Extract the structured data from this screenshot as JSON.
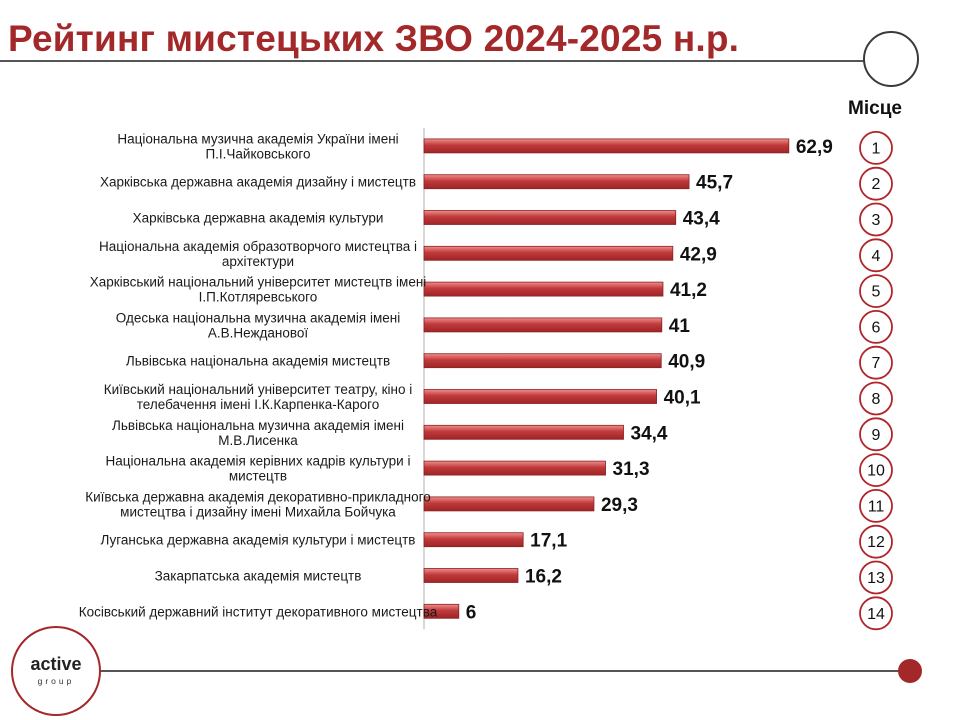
{
  "header": {
    "title": "Рейтинг мистецьких ЗВО 2024-2025 н.р.",
    "place_label": "Місце"
  },
  "logo": {
    "main": "active",
    "sub": "group"
  },
  "colors": {
    "accent": "#a3282a",
    "bar_fill": "#c0393b",
    "bar_highlight": "#ef8f8c"
  },
  "chart_data": {
    "type": "bar",
    "orientation": "horizontal",
    "title": "Рейтинг мистецьких ЗВО 2024-2025 н.р.",
    "xlim": [
      0,
      70
    ],
    "grid": false,
    "legend": "none",
    "categories": [
      [
        "Національна музична академія України імені",
        "П.І.Чайковського"
      ],
      [
        "Харківська державна академія дизайну і мистецтв"
      ],
      [
        "Харківська державна академія культури"
      ],
      [
        "Національна академія образотворчого мистецтва і",
        "архітектури"
      ],
      [
        "Харківський національний університет мистецтв імені",
        "І.П.Котляревського"
      ],
      [
        "Одеська національна музична академія імені",
        "А.В.Нежданової"
      ],
      [
        "Львівська національна академія мистецтв"
      ],
      [
        "Київський національний університет театру, кіно і",
        "телебачення імені І.К.Карпенка-Карого"
      ],
      [
        "Львівська національна музична академія імені",
        "М.В.Лисенка"
      ],
      [
        "Національна академія керівних кадрів культури і",
        "мистецтв"
      ],
      [
        "Київська державна академія декоративно-прикладного",
        "мистецтва і дизайну імені Михайла  Бойчука"
      ],
      [
        "Луганська державна академія культури і мистецтв"
      ],
      [
        "Закарпатська академія мистецтв"
      ],
      [
        "Косівський державний інститут декоративного мистецтва"
      ]
    ],
    "values": [
      62.9,
      45.7,
      43.4,
      42.9,
      41.2,
      41,
      40.9,
      40.1,
      34.4,
      31.3,
      29.3,
      17.1,
      16.2,
      6
    ],
    "value_labels": [
      "62,9",
      "45,7",
      "43,4",
      "42,9",
      "41,2",
      "41",
      "40,9",
      "40,1",
      "34,4",
      "31,3",
      "29,3",
      "17,1",
      "16,2",
      "6"
    ],
    "ranks": [
      "1",
      "2",
      "3",
      "4",
      "5",
      "6",
      "7",
      "8",
      "9",
      "10",
      "11",
      "12",
      "13",
      "14"
    ]
  }
}
